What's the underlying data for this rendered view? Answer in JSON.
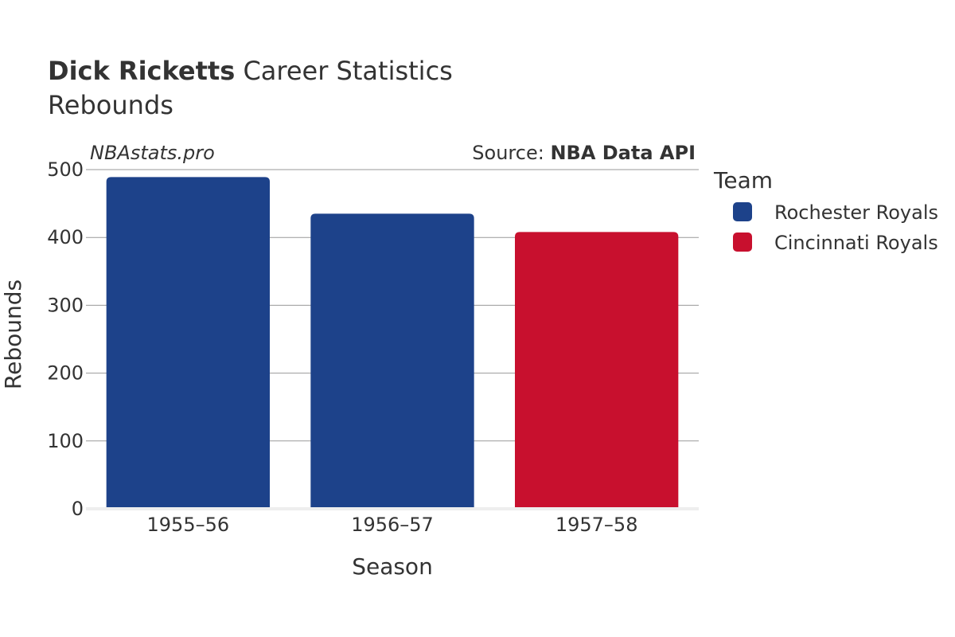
{
  "title": {
    "name": "Dick Ricketts",
    "suffix": " Career Statistics",
    "subtitle": "Rebounds"
  },
  "brand": "NBAstats.pro",
  "source": {
    "prefix": "Source: ",
    "name": "NBA Data API"
  },
  "legend": {
    "title": "Team",
    "items": [
      {
        "label": "Rochester Royals",
        "color": "#1d428a"
      },
      {
        "label": "Cincinnati Royals",
        "color": "#c8102e"
      }
    ]
  },
  "chart_data": {
    "type": "bar",
    "title": "Dick Ricketts Career Statistics",
    "subtitle": "Rebounds",
    "xlabel": "Season",
    "ylabel": "Rebounds",
    "categories": [
      "1955–56",
      "1956–57",
      "1957–58"
    ],
    "values": [
      489,
      435,
      408
    ],
    "teams": [
      "Rochester Royals",
      "Rochester Royals",
      "Cincinnati Royals"
    ],
    "colors": [
      "#1d428a",
      "#1d428a",
      "#c8102e"
    ],
    "ylim": [
      0,
      500
    ],
    "yticks": [
      0,
      100,
      200,
      300,
      400,
      500
    ],
    "grid": true,
    "legend_position": "right"
  }
}
